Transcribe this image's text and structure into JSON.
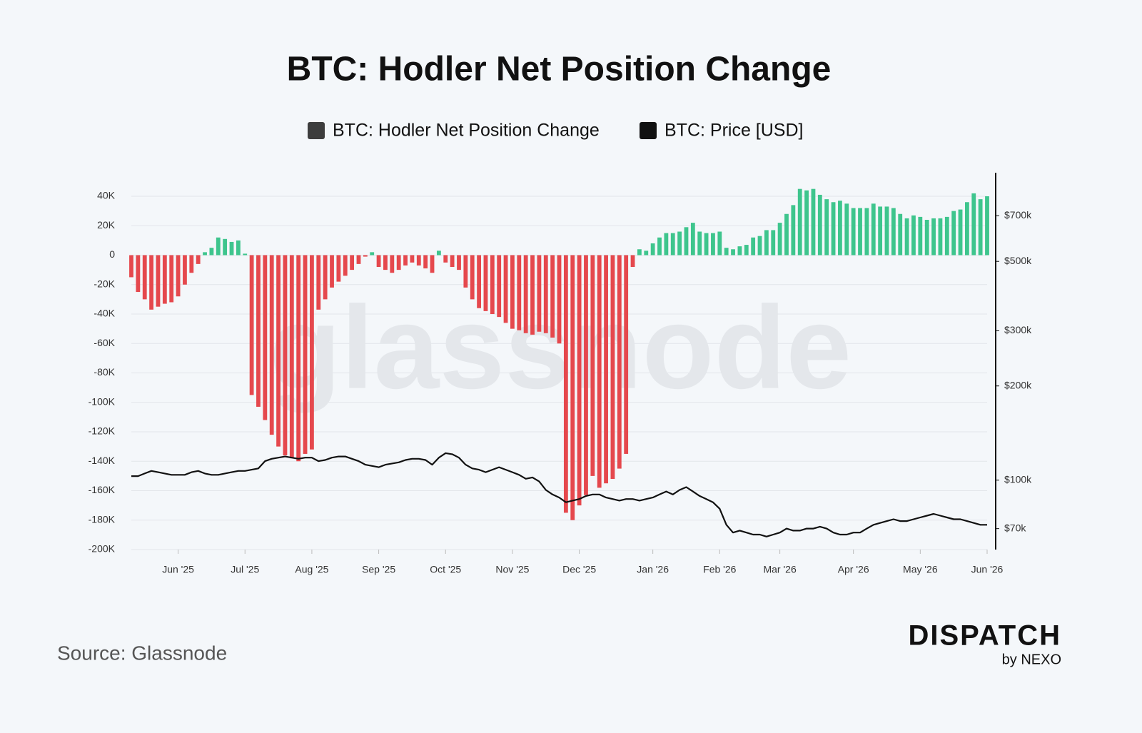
{
  "chart_data": {
    "type": "bar",
    "title": "BTC: Hodler Net Position Change",
    "watermark": "glassnode",
    "categories": [
      null,
      null,
      null,
      null,
      null,
      null,
      null,
      "Jun '25",
      null,
      null,
      null,
      null,
      null,
      null,
      null,
      null,
      null,
      "Jul '25",
      null,
      null,
      null,
      null,
      null,
      null,
      null,
      null,
      null,
      "Aug '25",
      null,
      null,
      null,
      null,
      null,
      null,
      null,
      null,
      null,
      "Sep '25",
      null,
      null,
      null,
      null,
      null,
      null,
      null,
      null,
      null,
      "Oct '25",
      null,
      null,
      null,
      null,
      null,
      null,
      null,
      null,
      null,
      "Nov '25",
      null,
      null,
      null,
      null,
      null,
      null,
      null,
      null,
      null,
      "Dec '25",
      null,
      null,
      null,
      null,
      null,
      null,
      null,
      null,
      null,
      null,
      "Jan '26",
      null,
      null,
      null,
      null,
      null,
      null,
      null,
      null,
      null,
      "Feb '26",
      null,
      null,
      null,
      null,
      null,
      null,
      null,
      null,
      "Mar '26",
      null,
      null,
      null,
      null,
      null,
      null,
      null,
      null,
      null,
      null,
      "Apr '26",
      null,
      null,
      null,
      null,
      null,
      null,
      null,
      null,
      null,
      "May '26",
      null,
      null,
      null,
      null,
      null,
      null,
      null,
      null,
      null,
      "Jun '26"
    ],
    "series": [
      {
        "name": "BTC: Hodler Net Position Change",
        "type": "bar",
        "color": "#3d3d3d",
        "positive_color": "#3ec58d",
        "negative_color": "#e5484d",
        "values": [
          -15000,
          -25000,
          -30000,
          -37000,
          -35000,
          -33000,
          -32000,
          -28000,
          -20000,
          -12000,
          -6000,
          2000,
          5000,
          12000,
          11000,
          9000,
          10000,
          1000,
          -95000,
          -103000,
          -112000,
          -122000,
          -130000,
          -136000,
          -138000,
          -140000,
          -135000,
          -132000,
          -37000,
          -30000,
          -22000,
          -18000,
          -14000,
          -10000,
          -6000,
          -1000,
          2000,
          -8000,
          -10000,
          -12000,
          -10000,
          -7000,
          -5000,
          -7000,
          -9000,
          -12000,
          3000,
          -5000,
          -8000,
          -10000,
          -22000,
          -30000,
          -36000,
          -38000,
          -40000,
          -42000,
          -46000,
          -50000,
          -51000,
          -53000,
          -54000,
          -52000,
          -53000,
          -56000,
          -60000,
          -175000,
          -180000,
          -170000,
          -163000,
          -150000,
          -158000,
          -155000,
          -152000,
          -145000,
          -135000,
          -8000,
          4000,
          3000,
          8000,
          12000,
          15000,
          15000,
          16000,
          19000,
          22000,
          16000,
          15000,
          15000,
          16000,
          5000,
          4000,
          6000,
          7000,
          12000,
          13000,
          17000,
          17000,
          22000,
          28000,
          34000,
          45000,
          44000,
          45000,
          41000,
          38000,
          36000,
          37000,
          35000,
          32000,
          32000,
          32000,
          35000,
          33000,
          33000,
          32000,
          28000,
          25000,
          27000,
          26000,
          24000,
          25000,
          25000,
          26000,
          30000,
          31000,
          36000,
          42000,
          38000,
          40000
        ]
      },
      {
        "name": "BTC: Price [USD]",
        "type": "line",
        "color": "#111111",
        "axis": "y2",
        "values": [
          103000,
          103000,
          105000,
          107000,
          106000,
          105000,
          104000,
          104000,
          104000,
          106000,
          107000,
          105000,
          104000,
          104000,
          105000,
          106000,
          107000,
          107000,
          108000,
          109000,
          115000,
          117000,
          118000,
          119000,
          118000,
          117000,
          118000,
          118000,
          115000,
          116000,
          118000,
          119000,
          119000,
          117000,
          115000,
          112000,
          111000,
          110000,
          112000,
          113000,
          114000,
          116000,
          117000,
          117000,
          116000,
          112000,
          118000,
          122000,
          121000,
          118000,
          112000,
          109000,
          108000,
          106000,
          108000,
          110000,
          108000,
          106000,
          104000,
          101000,
          102000,
          99000,
          93000,
          90000,
          88000,
          85000,
          86000,
          87000,
          89000,
          90000,
          90000,
          88000,
          87000,
          86000,
          87000,
          87000,
          86000,
          87000,
          88000,
          90000,
          92000,
          90000,
          93000,
          95000,
          92000,
          89000,
          87000,
          85000,
          81000,
          72000,
          68000,
          69000,
          68000,
          67000,
          67000,
          66000,
          67000,
          68000,
          70000,
          69000,
          69000,
          70000,
          70000,
          71000,
          70000,
          68000,
          67000,
          67000,
          68000,
          68000,
          70000,
          72000,
          73000,
          74000,
          75000,
          74000,
          74000,
          75000,
          76000,
          77000,
          78000,
          77000,
          76000,
          75000,
          75000,
          74000,
          73000,
          72000,
          72000
        ]
      }
    ],
    "ylim": [
      -200000,
      56000
    ],
    "yticks": [
      {
        "value": -200000,
        "label": "-200K"
      },
      {
        "value": -180000,
        "label": "-180K"
      },
      {
        "value": -160000,
        "label": "-160K"
      },
      {
        "value": -140000,
        "label": "-140K"
      },
      {
        "value": -120000,
        "label": "-120K"
      },
      {
        "value": -100000,
        "label": "-100K"
      },
      {
        "value": -80000,
        "label": "-80K"
      },
      {
        "value": -60000,
        "label": "-60K"
      },
      {
        "value": -40000,
        "label": "-40K"
      },
      {
        "value": -20000,
        "label": "-20K"
      },
      0,
      {
        "value": 20000,
        "label": "20K"
      },
      {
        "value": 40000,
        "label": "40K"
      }
    ],
    "y2lim": [
      60000,
      960000
    ],
    "y2scale": "log",
    "y2ticks": [
      {
        "value": 70000,
        "label": "$70k"
      },
      {
        "value": 100000,
        "label": "$100k"
      },
      {
        "value": 200000,
        "label": "$200k"
      },
      {
        "value": 300000,
        "label": "$300k"
      },
      {
        "value": 500000,
        "label": "$500k"
      },
      {
        "value": 700000,
        "label": "$700k"
      }
    ],
    "grid": true,
    "legend": "top"
  },
  "source": "Source: Glassnode",
  "branding": {
    "name": "DISPATCH",
    "byline": "by NEXO"
  }
}
